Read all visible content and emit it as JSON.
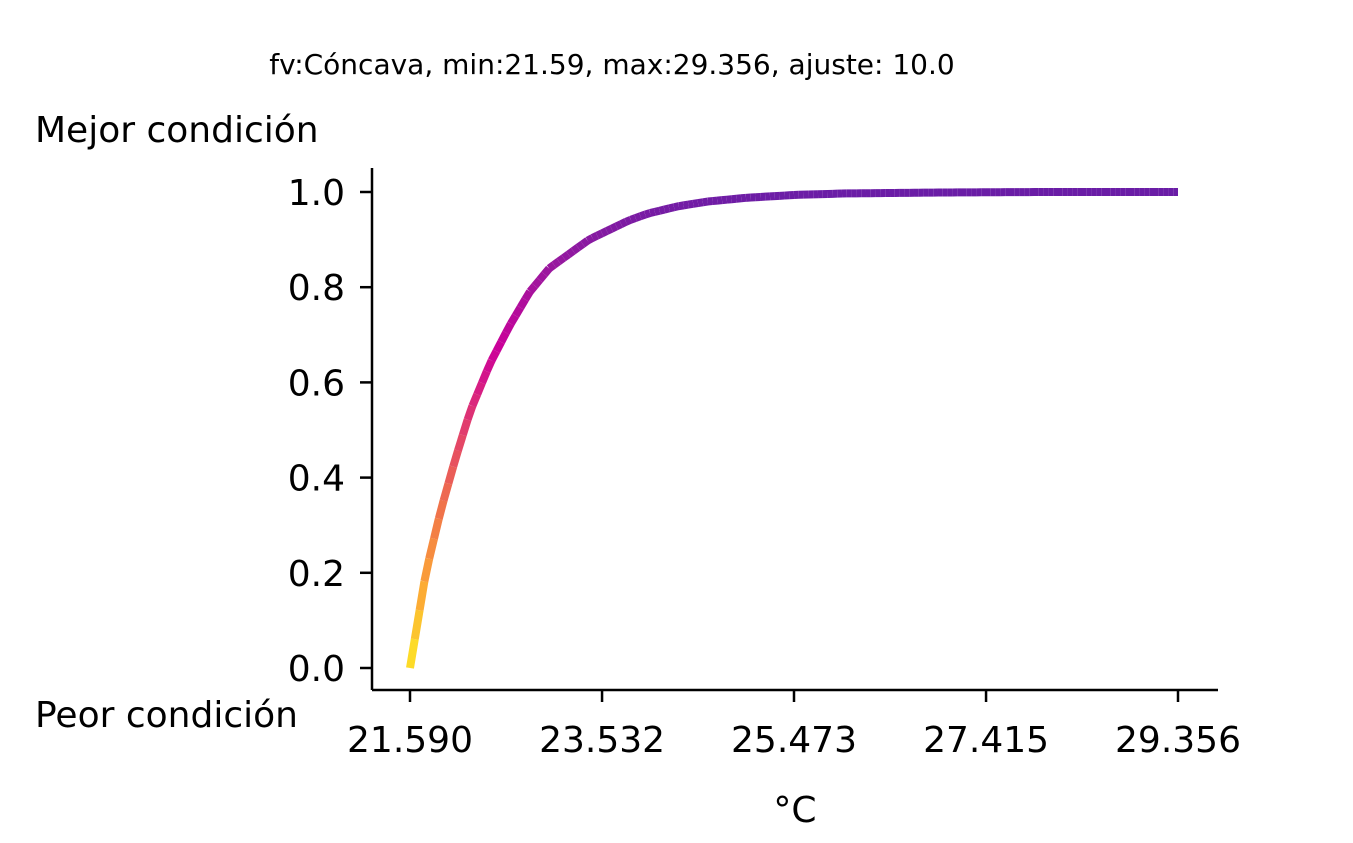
{
  "chart_data": {
    "type": "line",
    "title": "fv:Cóncava, min:21.59, max:29.356, ajuste: 10.0",
    "ylabel_top": "Mejor condición",
    "ylabel_bottom": "Peor condición",
    "xlabel": "°C",
    "xlim": [
      21.59,
      29.356
    ],
    "ylim": [
      0.0,
      1.0
    ],
    "xticks": [
      "21.590",
      "23.532",
      "25.473",
      "27.415",
      "29.356"
    ],
    "yticks": [
      "0.0",
      "0.2",
      "0.4",
      "0.6",
      "0.8",
      "1.0"
    ],
    "curve": {
      "kind": "concave-exponential",
      "min": 21.59,
      "max": 29.356,
      "ajuste": 10.0
    },
    "colormap": [
      "#fde725",
      "#fca636",
      "#f0734a",
      "#e23f6b",
      "#cc0099",
      "#9c179e",
      "#6a1da6"
    ],
    "series": [
      {
        "x": [
          21.59,
          21.75,
          21.9,
          22.05,
          22.2,
          22.4,
          22.6,
          22.8,
          23.0,
          23.2,
          23.4,
          23.6,
          23.8,
          24.0,
          24.3,
          24.6,
          25.0,
          25.5,
          26.0,
          26.5,
          27.0,
          27.5,
          28.0,
          28.5,
          29.0,
          29.356
        ],
        "y": [
          0.0,
          0.2,
          0.33,
          0.44,
          0.54,
          0.64,
          0.72,
          0.79,
          0.84,
          0.87,
          0.9,
          0.92,
          0.94,
          0.955,
          0.97,
          0.98,
          0.988,
          0.994,
          0.997,
          0.998,
          0.999,
          0.9995,
          1.0,
          1.0,
          1.0,
          1.0
        ]
      }
    ]
  }
}
